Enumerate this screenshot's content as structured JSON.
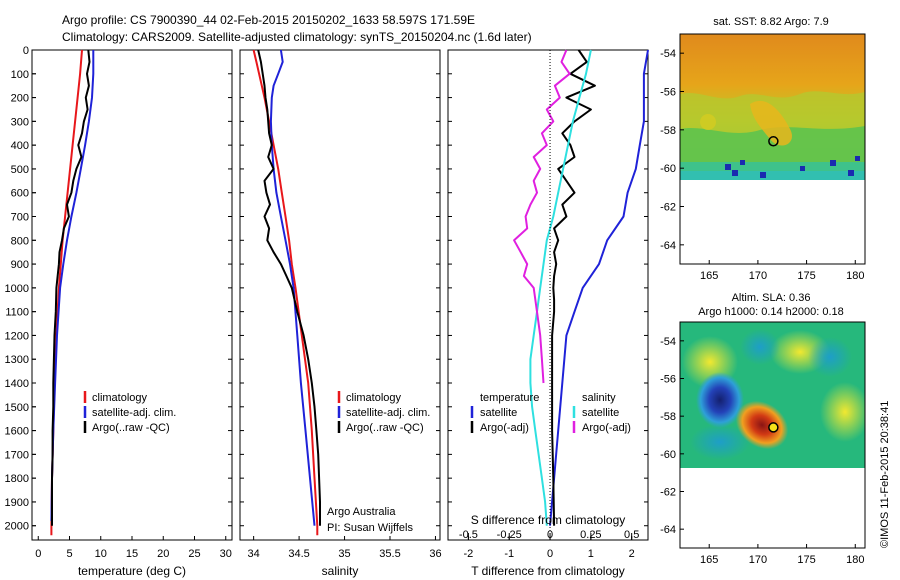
{
  "header": {
    "line1": "Argo profile: CS 7900390_44 02-Feb-2015 20150202_1633 58.597S 171.59E",
    "line2": "Climatology: CARS2009. Satellite-adjusted climatology: synTS_20150204.nc (1.6d later)"
  },
  "colors": {
    "climatology": "#e8171b",
    "satellite": "#1f22d8",
    "argo": "#000000",
    "sat_salinity": "#2ee0e0",
    "argo_salinity_diff": "#e020e0"
  },
  "depth_axis": {
    "ylim": [
      0,
      2060
    ],
    "ticks": [
      "0",
      "100",
      "200",
      "300",
      "400",
      "500",
      "600",
      "700",
      "800",
      "900",
      "1000",
      "1100",
      "1200",
      "1300",
      "1400",
      "1500",
      "1600",
      "1700",
      "1800",
      "1900",
      "2000"
    ]
  },
  "chart_data": [
    {
      "type": "line",
      "panel": "temperature",
      "xlabel": "temperature (deg C)",
      "xlim": [
        -1,
        31
      ],
      "ylim": [
        0,
        2060
      ],
      "x_ticks": [
        "0",
        "5",
        "10",
        "15",
        "20",
        "25",
        "30"
      ],
      "legend": [
        "climatology",
        "satellite-adj. clim.",
        "Argo(..raw -QC)"
      ],
      "series": [
        {
          "name": "climatology",
          "depth": [
            0,
            100,
            200,
            300,
            400,
            500,
            600,
            700,
            800,
            900,
            1000,
            1200,
            1400,
            1600,
            1800,
            2000,
            2040
          ],
          "values": [
            7.0,
            6.7,
            6.3,
            5.9,
            5.5,
            5.1,
            4.7,
            4.3,
            3.9,
            3.6,
            3.3,
            2.9,
            2.6,
            2.4,
            2.2,
            2.1,
            2.1
          ]
        },
        {
          "name": "satellite-adj. clim.",
          "depth": [
            0,
            100,
            200,
            300,
            400,
            500,
            600,
            700,
            800,
            900,
            1000,
            1200,
            1400,
            1600,
            1800,
            1980
          ],
          "values": [
            8.8,
            8.8,
            8.6,
            8.1,
            7.5,
            6.8,
            6.1,
            5.3,
            4.6,
            4.0,
            3.5,
            3.0,
            2.7,
            2.4,
            2.2,
            2.1
          ]
        },
        {
          "name": "Argo(..raw -QC)",
          "depth": [
            0,
            50,
            100,
            150,
            200,
            250,
            300,
            350,
            400,
            450,
            500,
            550,
            600,
            650,
            700,
            750,
            800,
            850,
            900,
            1000,
            1100,
            1200,
            1300,
            1400,
            1500,
            1600,
            1700,
            1800,
            1900,
            2000
          ],
          "values": [
            8.0,
            8.2,
            7.8,
            8.1,
            7.6,
            7.9,
            7.3,
            7.0,
            6.4,
            6.9,
            6.1,
            5.6,
            5.3,
            4.6,
            4.9,
            4.1,
            3.8,
            3.4,
            3.3,
            2.9,
            2.8,
            2.6,
            2.5,
            2.4,
            2.4,
            2.3,
            2.3,
            2.2,
            2.2,
            2.2
          ]
        }
      ]
    },
    {
      "type": "line",
      "panel": "salinity",
      "xlabel": "salinity",
      "xlim": [
        33.85,
        36.05
      ],
      "ylim": [
        0,
        2060
      ],
      "x_ticks": [
        "34",
        "34.5",
        "35",
        "35.5",
        "36"
      ],
      "legend": [
        "climatology",
        "satellite-adj. clim.",
        "Argo(..raw -QC)"
      ],
      "annotations": [
        "Argo Australia",
        "PI: Susan Wijffels"
      ],
      "series": [
        {
          "name": "climatology",
          "depth": [
            0,
            50,
            100,
            200,
            300,
            400,
            500,
            600,
            700,
            800,
            900,
            1000,
            1200,
            1400,
            1600,
            1800,
            2000,
            2040
          ],
          "values": [
            34.0,
            34.03,
            34.06,
            34.12,
            34.17,
            34.22,
            34.27,
            34.31,
            34.35,
            34.39,
            34.42,
            34.46,
            34.53,
            34.6,
            34.64,
            34.67,
            34.7,
            34.7
          ]
        },
        {
          "name": "satellite-adj. clim.",
          "depth": [
            0,
            50,
            100,
            150,
            200,
            300,
            400,
            500,
            600,
            700,
            800,
            900,
            1000,
            1200,
            1400,
            1600,
            1800,
            2000
          ],
          "values": [
            34.3,
            34.32,
            34.27,
            34.22,
            34.2,
            34.19,
            34.2,
            34.22,
            34.25,
            34.3,
            34.35,
            34.4,
            34.44,
            34.48,
            34.52,
            34.57,
            34.62,
            34.67
          ]
        },
        {
          "name": "Argo(..raw -QC)",
          "depth": [
            0,
            50,
            100,
            150,
            200,
            250,
            300,
            350,
            400,
            450,
            500,
            550,
            600,
            650,
            700,
            750,
            800,
            850,
            900,
            950,
            1000,
            1100,
            1200,
            1300,
            1400,
            1500,
            1600,
            1700,
            1800,
            1900,
            2000
          ],
          "values": [
            34.05,
            34.08,
            34.1,
            34.12,
            34.13,
            34.15,
            34.16,
            34.17,
            34.2,
            34.16,
            34.22,
            34.12,
            34.14,
            34.18,
            34.12,
            34.17,
            34.15,
            34.22,
            34.3,
            34.36,
            34.42,
            34.48,
            34.55,
            34.6,
            34.64,
            34.67,
            34.69,
            34.71,
            34.72,
            34.73,
            34.73
          ]
        }
      ]
    },
    {
      "type": "line",
      "panel": "difference",
      "xlabel": "T difference from climatology",
      "xlabel_top": "S difference from climatology",
      "xlim": [
        -2.5,
        2.4
      ],
      "ylim": [
        0,
        2060
      ],
      "x_ticks": [
        "-2",
        "-1",
        "0",
        "1",
        "2"
      ],
      "x_ticks_salinity": [
        "-0.5",
        "-0.25",
        "0",
        "0.25",
        "0.5"
      ],
      "legend_headers": [
        "temperature",
        "salinity"
      ],
      "legend": [
        "satellite",
        "Argo(-adj)",
        "satellite",
        "Argo(-adj)"
      ],
      "series": [
        {
          "name": "temperature satellite",
          "depth": [
            0,
            100,
            200,
            300,
            400,
            500,
            600,
            700,
            800,
            900,
            1000,
            1100,
            1200,
            1400,
            1600,
            1800,
            2000
          ],
          "values": [
            2.4,
            2.3,
            2.3,
            2.3,
            2.2,
            2.1,
            1.9,
            1.8,
            1.4,
            1.2,
            0.8,
            0.6,
            0.4,
            0.3,
            0.2,
            0.1,
            0.0
          ]
        },
        {
          "name": "temperature Argo(-adj)",
          "depth": [
            0,
            50,
            100,
            150,
            200,
            250,
            300,
            350,
            400,
            450,
            500,
            550,
            600,
            650,
            700,
            750,
            800,
            850,
            900,
            950,
            1000,
            1050,
            1100,
            1200,
            1400,
            1600,
            1800,
            2000
          ],
          "values": [
            0.7,
            0.9,
            0.5,
            1.1,
            0.4,
            1.0,
            0.6,
            0.3,
            0.5,
            0.6,
            0.2,
            0.4,
            0.6,
            0.3,
            0.4,
            0.1,
            0.2,
            0.1,
            0.15,
            0.1,
            0.08,
            0.1,
            0.1,
            0.05,
            0.05,
            0.05,
            0.08,
            0.1
          ]
        },
        {
          "name": "salinity satellite",
          "depth": [
            0,
            100,
            200,
            300,
            400,
            500,
            600,
            700,
            800,
            900,
            1000,
            1100,
            1200,
            1300,
            1400,
            1500,
            1600,
            1700,
            1800,
            1900,
            2000
          ],
          "values": [
            0.25,
            0.22,
            0.18,
            0.14,
            0.11,
            0.08,
            0.05,
            0.02,
            -0.02,
            -0.04,
            -0.06,
            -0.08,
            -0.1,
            -0.12,
            -0.12,
            -0.11,
            -0.09,
            -0.07,
            -0.05,
            -0.03,
            -0.02
          ]
        },
        {
          "name": "salinity Argo(-adj)",
          "depth": [
            0,
            50,
            100,
            150,
            200,
            250,
            300,
            350,
            400,
            450,
            500,
            550,
            600,
            650,
            700,
            750,
            800,
            850,
            900,
            950,
            1000,
            1100,
            1200,
            1300,
            1400
          ],
          "values": [
            0.1,
            0.07,
            0.12,
            0.03,
            0.06,
            -0.02,
            0.02,
            -0.05,
            -0.02,
            -0.1,
            -0.06,
            -0.1,
            -0.08,
            -0.12,
            -0.15,
            -0.14,
            -0.22,
            -0.18,
            -0.14,
            -0.16,
            -0.1,
            -0.08,
            -0.06,
            -0.05,
            -0.04
          ]
        }
      ]
    },
    {
      "type": "heatmap",
      "panel": "sst_map",
      "title": "sat. SST: 8.82  Argo: 7.9",
      "xlim": [
        162,
        181
      ],
      "ylim": [
        -65,
        -53
      ],
      "x_ticks": [
        "165",
        "170",
        "175",
        "180"
      ],
      "y_ticks": [
        "-54",
        "-56",
        "-58",
        "-60",
        "-62",
        "-64"
      ],
      "float_lon": 171.59,
      "float_lat": -58.597
    },
    {
      "type": "heatmap",
      "panel": "sla_map",
      "title": "Altim. SLA: 0.36",
      "subtitle": "Argo h1000: 0.14 h2000: 0.18",
      "xlim": [
        162,
        181
      ],
      "ylim": [
        -65,
        -53
      ],
      "x_ticks": [
        "165",
        "170",
        "175",
        "180"
      ],
      "y_ticks": [
        "-54",
        "-56",
        "-58",
        "-60",
        "-62",
        "-64"
      ],
      "float_lon": 171.59,
      "float_lat": -58.597
    }
  ],
  "footer": {
    "credit": "©IMOS 11-Feb-2015 20:38:41"
  }
}
